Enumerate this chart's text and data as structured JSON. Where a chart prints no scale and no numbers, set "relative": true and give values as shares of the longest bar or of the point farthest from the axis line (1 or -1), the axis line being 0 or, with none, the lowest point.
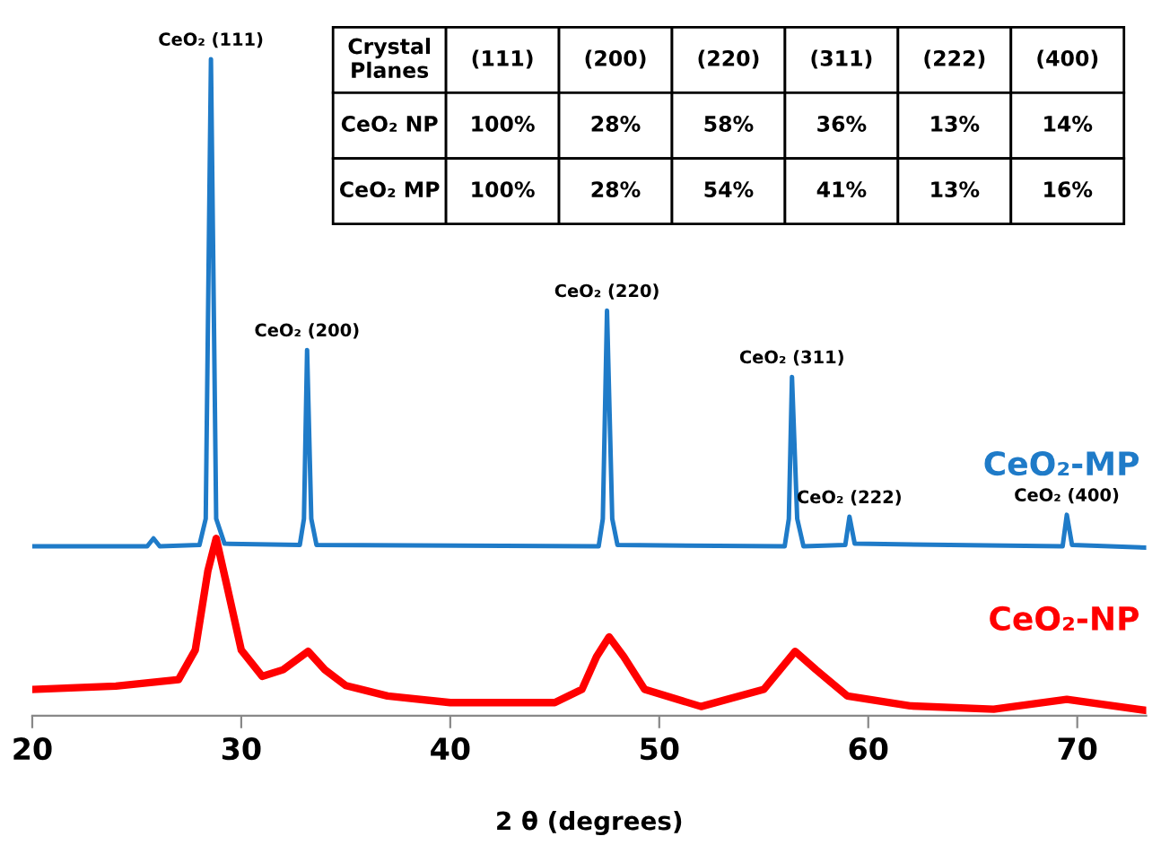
{
  "chart_data": {
    "type": "line",
    "relative": true,
    "xlabel": "2 θ (degrees)",
    "xlim": [
      20,
      73.3
    ],
    "xticks": [
      20,
      30,
      40,
      50,
      60,
      70
    ],
    "tick_labels": "x",
    "grid": false,
    "legend": false,
    "marker": "none",
    "line_style": "solid",
    "series": [
      {
        "name": "CeO₂-MP",
        "color": "#1f7bc8",
        "x": [
          20,
          25.5,
          25.8,
          26.1,
          28.0,
          28.3,
          28.55,
          28.8,
          29.2,
          32.8,
          33.0,
          33.15,
          33.35,
          33.6,
          47.1,
          47.3,
          47.5,
          47.75,
          48.0,
          56.0,
          56.2,
          56.35,
          56.6,
          56.9,
          58.9,
          59.1,
          59.35,
          69.3,
          69.5,
          69.75,
          73.3
        ],
        "values": [
          0.258,
          0.258,
          0.27,
          0.258,
          0.26,
          0.3,
          1.0,
          0.3,
          0.262,
          0.26,
          0.3,
          0.557,
          0.3,
          0.26,
          0.258,
          0.3,
          0.617,
          0.3,
          0.26,
          0.258,
          0.3,
          0.516,
          0.3,
          0.258,
          0.26,
          0.303,
          0.262,
          0.258,
          0.306,
          0.26,
          0.256
        ]
      },
      {
        "name": "CeO₂-NP",
        "color": "#ff0000",
        "x": [
          20,
          24,
          27,
          27.8,
          28.4,
          28.8,
          29.3,
          30,
          31,
          32,
          33.2,
          34,
          35,
          37,
          40,
          45,
          46.3,
          47,
          47.6,
          48.3,
          49.3,
          52,
          55,
          56.5,
          57.5,
          59,
          62,
          66,
          69.5,
          73.3
        ],
        "values": [
          0.04,
          0.045,
          0.055,
          0.1,
          0.22,
          0.27,
          0.2,
          0.1,
          0.06,
          0.07,
          0.098,
          0.07,
          0.046,
          0.03,
          0.02,
          0.02,
          0.04,
          0.09,
          0.12,
          0.09,
          0.04,
          0.014,
          0.04,
          0.098,
          0.07,
          0.03,
          0.015,
          0.01,
          0.025,
          0.008
        ]
      }
    ],
    "annotations": [
      {
        "text": "CeO₂ (111)",
        "x": 28.55,
        "y": 1.0
      },
      {
        "text": "CeO₂ (200)",
        "x": 33.15,
        "y": 0.557
      },
      {
        "text": "CeO₂ (220)",
        "x": 47.5,
        "y": 0.617
      },
      {
        "text": "CeO₂ (311)",
        "x": 56.35,
        "y": 0.516
      },
      {
        "text": "CeO₂ (222)",
        "x": 59.1,
        "y": 0.303
      },
      {
        "text": "CeO₂ (400)",
        "x": 69.5,
        "y": 0.306
      },
      "Crystal\nPlanes",
      "(111)",
      "(200)",
      "(220)",
      "(311)",
      "(222)",
      "(400)",
      "CeO₂ NP",
      "100%",
      "28%",
      "58%",
      "36%",
      "13%",
      "14%",
      "CeO₂ MP",
      "100%",
      "28%",
      "54%",
      "41%",
      "13%",
      "16%"
    ]
  }
}
